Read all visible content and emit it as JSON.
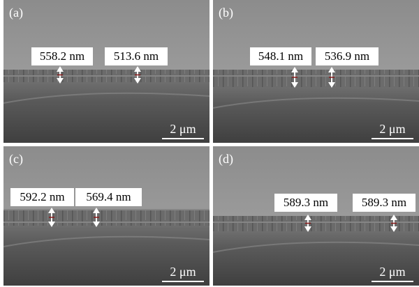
{
  "panels": [
    {
      "label": "(a)",
      "measurements": [
        "558.2 nm",
        "513.6 nm"
      ],
      "scale_bar": "2 μm"
    },
    {
      "label": "(b)",
      "measurements": [
        "548.1 nm",
        "536.9 nm"
      ],
      "scale_bar": "2 μm"
    },
    {
      "label": "(c)",
      "measurements": [
        "592.2 nm",
        "569.4 nm"
      ],
      "scale_bar": "2 μm"
    },
    {
      "label": "(d)",
      "measurements": [
        "589.3 nm",
        "589.3 nm"
      ],
      "scale_bar": "2 μm"
    }
  ]
}
